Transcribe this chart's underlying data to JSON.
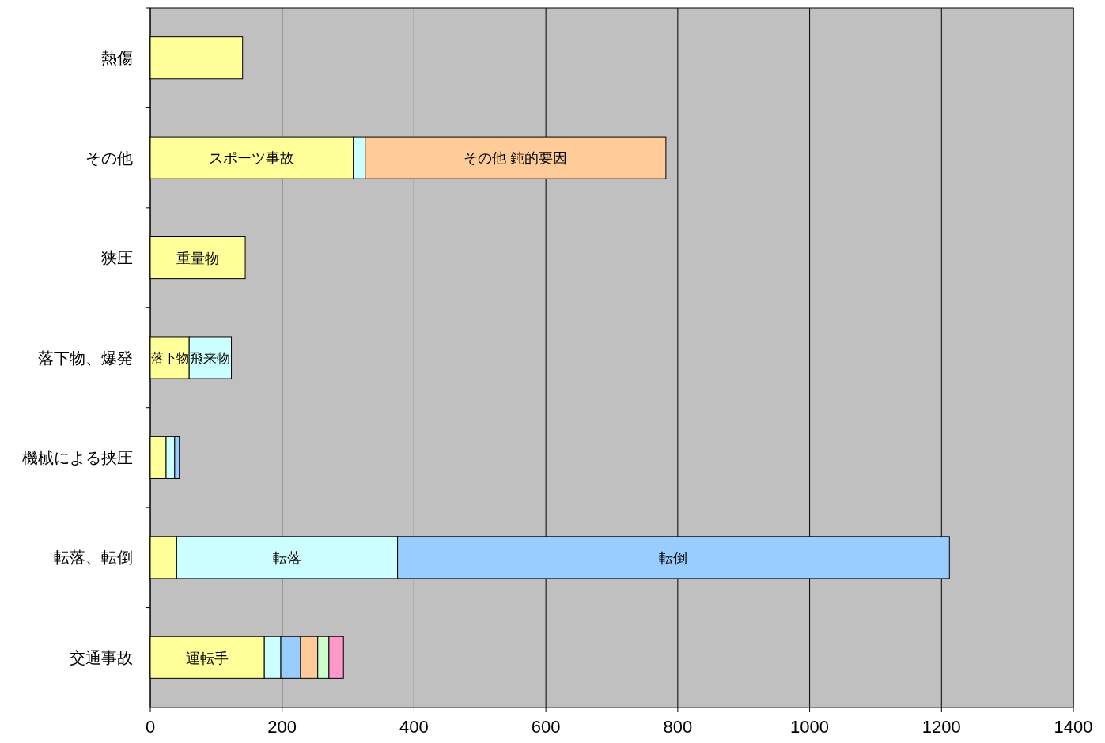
{
  "chart_data": {
    "type": "bar",
    "orientation": "horizontal",
    "stacked": true,
    "grid": "x",
    "categories": [
      "熱傷",
      "その他",
      "狭圧",
      "落下物、爆発",
      "機械による挟圧",
      "転落、転倒",
      "交通事故"
    ],
    "series": [
      {
        "color": "#ffff99",
        "values": [
          140,
          308,
          144,
          59,
          24,
          40,
          173
        ],
        "value_labels": [
          null,
          "スポーツ事故",
          "重量物",
          "落下物",
          null,
          null,
          "運転手"
        ]
      },
      {
        "color": "#ccffff",
        "values": [
          null,
          18,
          null,
          64,
          13,
          335,
          25
        ],
        "value_labels": [
          null,
          null,
          null,
          "飛来物",
          null,
          "転落",
          null
        ]
      },
      {
        "color": "#99ccff",
        "values": [
          null,
          null,
          null,
          null,
          7,
          837,
          30
        ],
        "value_labels": [
          null,
          null,
          null,
          null,
          null,
          "転倒",
          null
        ]
      },
      {
        "color": "#ffcc99",
        "values": [
          null,
          456,
          null,
          null,
          null,
          null,
          26
        ],
        "value_labels": [
          null,
          "その他 鈍的要因",
          null,
          null,
          null,
          null,
          null
        ]
      },
      {
        "color": "#ccffcc",
        "values": [
          null,
          null,
          null,
          null,
          null,
          null,
          17
        ]
      },
      {
        "color": "#ff99cc",
        "values": [
          null,
          null,
          null,
          null,
          null,
          null,
          22
        ]
      }
    ],
    "xlim": [
      0,
      1400
    ],
    "xticks": [
      0,
      200,
      400,
      600,
      800,
      1000,
      1200,
      1400
    ]
  }
}
